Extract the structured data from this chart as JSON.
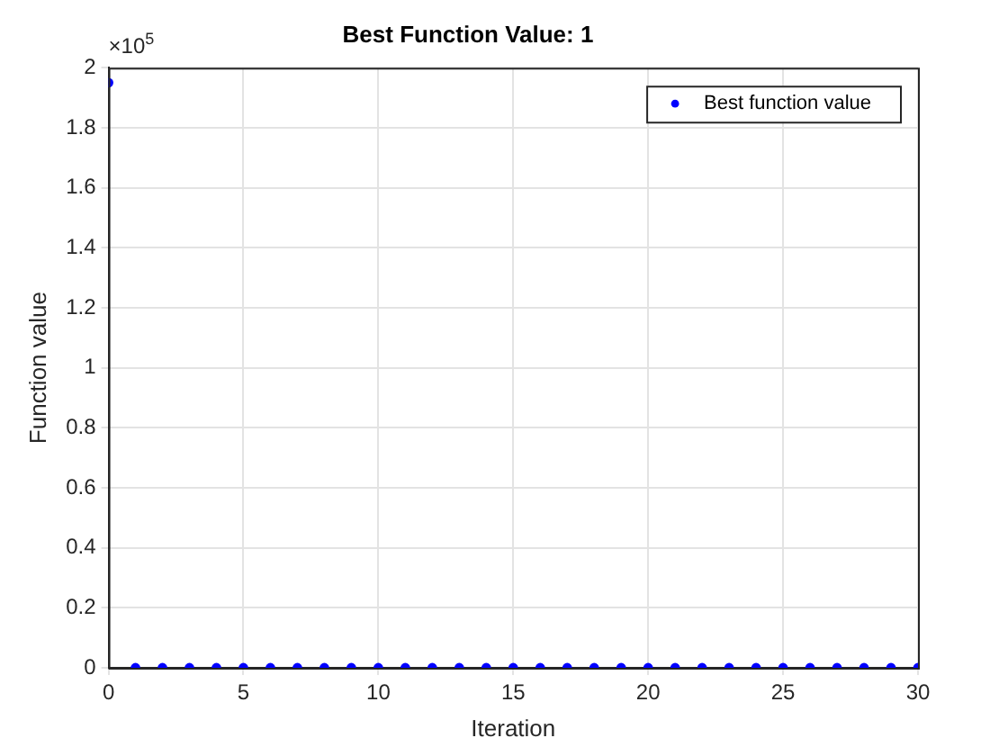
{
  "chart_data": {
    "type": "scatter",
    "title": "Best Function Value: 1",
    "xlabel": "Iteration",
    "ylabel": "Function value",
    "annotations": [
      "×10$^{5}$"
    ],
    "x": [
      0,
      1,
      2,
      3,
      4,
      5,
      6,
      7,
      8,
      9,
      10,
      11,
      12,
      13,
      14,
      15,
      16,
      17,
      18,
      19,
      20,
      21,
      22,
      23,
      24,
      25,
      26,
      27,
      28,
      29,
      30
    ],
    "series": [
      {
        "name": "Best function value",
        "color": "#0000ff",
        "values": [
          1.95,
          0,
          0,
          0,
          0,
          0,
          0,
          0,
          0,
          0,
          0,
          0,
          0,
          0,
          0,
          0,
          0,
          0,
          0,
          0,
          0,
          0,
          0,
          0,
          0,
          0,
          0,
          0,
          0,
          0,
          0
        ]
      }
    ],
    "xlim": [
      0,
      30
    ],
    "xticks": [
      0,
      5,
      10,
      15,
      20,
      25,
      30
    ],
    "ylim": [
      0,
      2
    ],
    "yticks": [
      0,
      0.2,
      0.4,
      0.6,
      0.8,
      1,
      1.2,
      1.4,
      1.6,
      1.8,
      2
    ],
    "grid": true,
    "legend": "top right",
    "marker": "circle"
  }
}
